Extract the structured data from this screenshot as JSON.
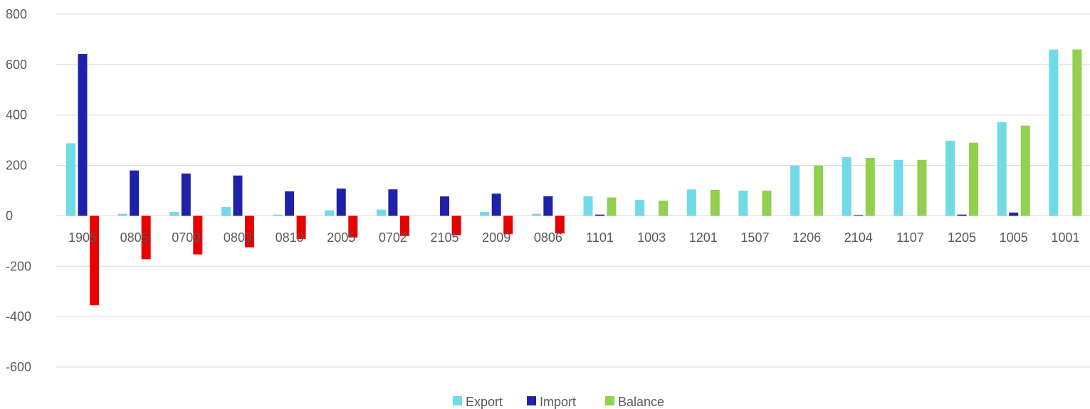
{
  "chart_data": {
    "type": "bar",
    "title": "",
    "xlabel": "",
    "ylabel": "",
    "ylim": [
      -600,
      800
    ],
    "yticks": [
      800,
      600,
      400,
      200,
      0,
      -200,
      -400,
      -600
    ],
    "grid": true,
    "legend_position": "bottom",
    "categories": [
      "1905",
      "0805",
      "0709",
      "0803",
      "0810",
      "2005",
      "0702",
      "2105",
      "2009",
      "0806",
      "1101",
      "1003",
      "1201",
      "1507",
      "1206",
      "2104",
      "1107",
      "1205",
      "1005",
      "1001"
    ],
    "series": [
      {
        "name": "Export",
        "color": "#70dbe6",
        "values": [
          288,
          8,
          15,
          35,
          5,
          22,
          25,
          0,
          15,
          8,
          78,
          63,
          105,
          100,
          200,
          233,
          222,
          298,
          372,
          660
        ]
      },
      {
        "name": "Import",
        "color": "#1f22a8",
        "values": [
          642,
          180,
          168,
          160,
          97,
          108,
          105,
          77,
          88,
          78,
          5,
          0,
          0,
          0,
          0,
          3,
          0,
          5,
          13,
          0
        ]
      },
      {
        "name": "Balance",
        "color": "#92d050",
        "negative_color": "#e60000",
        "values": [
          -355,
          -172,
          -153,
          -125,
          -92,
          -86,
          -80,
          -77,
          -73,
          -70,
          73,
          60,
          103,
          100,
          200,
          230,
          222,
          290,
          358,
          660
        ]
      }
    ]
  }
}
